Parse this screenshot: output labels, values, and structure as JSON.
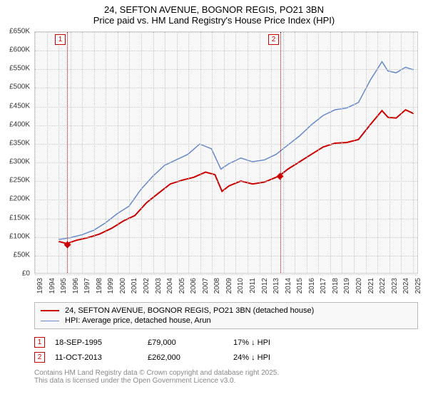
{
  "title": {
    "line1": "24, SEFTON AVENUE, BOGNOR REGIS, PO21 3BN",
    "line2": "Price paid vs. HM Land Registry's House Price Index (HPI)"
  },
  "chart": {
    "type": "line",
    "background_color": "#f8f8f8",
    "grid_color": "#c8c8c8",
    "border_color": "#d0d0d0",
    "x": {
      "min": 1993,
      "max": 2025.5,
      "years": [
        "1993",
        "1994",
        "1995",
        "1996",
        "1997",
        "1998",
        "1999",
        "2000",
        "2001",
        "2002",
        "2003",
        "2004",
        "2005",
        "2006",
        "2007",
        "2008",
        "2009",
        "2010",
        "2011",
        "2012",
        "2013",
        "2014",
        "2015",
        "2016",
        "2017",
        "2018",
        "2019",
        "2020",
        "2021",
        "2022",
        "2023",
        "2024",
        "2025"
      ],
      "label_fontsize": 10,
      "label_rotation": -90
    },
    "y": {
      "min": 0,
      "max": 650000,
      "step": 50000,
      "labels": [
        "£0",
        "£50K",
        "£100K",
        "£150K",
        "£200K",
        "£250K",
        "£300K",
        "£350K",
        "£400K",
        "£450K",
        "£500K",
        "£550K",
        "£600K",
        "£650K"
      ],
      "label_fontsize": 10
    },
    "series": [
      {
        "id": "property",
        "legend": "24, SEFTON AVENUE, BOGNOR REGIS, PO21 3BN (detached house)",
        "color": "#cc0000",
        "line_width": 2,
        "data": [
          [
            1995.0,
            85000
          ],
          [
            1995.72,
            79000
          ],
          [
            1996.5,
            88000
          ],
          [
            1997.5,
            95000
          ],
          [
            1998.5,
            105000
          ],
          [
            1999.5,
            120000
          ],
          [
            2000.5,
            140000
          ],
          [
            2001.5,
            155000
          ],
          [
            2002.5,
            190000
          ],
          [
            2003.5,
            215000
          ],
          [
            2004.5,
            240000
          ],
          [
            2005.5,
            250000
          ],
          [
            2006.5,
            258000
          ],
          [
            2007.5,
            272000
          ],
          [
            2008.3,
            265000
          ],
          [
            2008.9,
            220000
          ],
          [
            2009.5,
            235000
          ],
          [
            2010.5,
            248000
          ],
          [
            2011.5,
            240000
          ],
          [
            2012.5,
            245000
          ],
          [
            2013.5,
            258000
          ],
          [
            2013.78,
            262000
          ],
          [
            2014.5,
            280000
          ],
          [
            2015.5,
            300000
          ],
          [
            2016.5,
            320000
          ],
          [
            2017.5,
            340000
          ],
          [
            2018.5,
            350000
          ],
          [
            2019.5,
            352000
          ],
          [
            2020.5,
            360000
          ],
          [
            2021.5,
            400000
          ],
          [
            2022.5,
            438000
          ],
          [
            2023.0,
            420000
          ],
          [
            2023.7,
            418000
          ],
          [
            2024.5,
            440000
          ],
          [
            2025.2,
            430000
          ]
        ]
      },
      {
        "id": "hpi",
        "legend": "HPI: Average price, detached house, Arun",
        "color": "#6688cc",
        "line_width": 1.5,
        "data": [
          [
            1995.0,
            90000
          ],
          [
            1996.0,
            95000
          ],
          [
            1997.0,
            103000
          ],
          [
            1998.0,
            115000
          ],
          [
            1999.0,
            135000
          ],
          [
            2000.0,
            160000
          ],
          [
            2001.0,
            180000
          ],
          [
            2002.0,
            225000
          ],
          [
            2003.0,
            260000
          ],
          [
            2004.0,
            290000
          ],
          [
            2005.0,
            305000
          ],
          [
            2006.0,
            320000
          ],
          [
            2007.0,
            348000
          ],
          [
            2008.0,
            335000
          ],
          [
            2008.8,
            280000
          ],
          [
            2009.5,
            295000
          ],
          [
            2010.5,
            310000
          ],
          [
            2011.5,
            300000
          ],
          [
            2012.5,
            305000
          ],
          [
            2013.5,
            320000
          ],
          [
            2014.5,
            345000
          ],
          [
            2015.5,
            370000
          ],
          [
            2016.5,
            400000
          ],
          [
            2017.5,
            425000
          ],
          [
            2018.5,
            440000
          ],
          [
            2019.5,
            445000
          ],
          [
            2020.5,
            460000
          ],
          [
            2021.5,
            520000
          ],
          [
            2022.5,
            570000
          ],
          [
            2023.0,
            545000
          ],
          [
            2023.7,
            540000
          ],
          [
            2024.5,
            555000
          ],
          [
            2025.2,
            548000
          ]
        ]
      }
    ],
    "sale_markers": [
      {
        "n": "1",
        "year": 1995.72,
        "price": 79000
      },
      {
        "n": "2",
        "year": 2013.78,
        "price": 262000
      }
    ]
  },
  "legend_box": {
    "border_color": "#bbbbbb",
    "background_color": "#f8f8f8"
  },
  "sales": [
    {
      "n": "1",
      "date": "18-SEP-1995",
      "price": "£79,000",
      "diff": "17% ↓ HPI"
    },
    {
      "n": "2",
      "date": "11-OCT-2013",
      "price": "£262,000",
      "diff": "24% ↓ HPI"
    }
  ],
  "footer": {
    "line1": "Contains HM Land Registry data © Crown copyright and database right 2025.",
    "line2": "This data is licensed under the Open Government Licence v3.0."
  }
}
